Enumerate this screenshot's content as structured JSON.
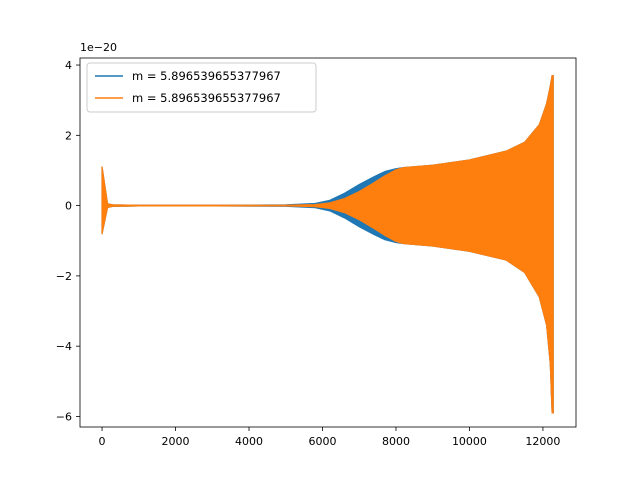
{
  "chart_data": {
    "type": "line",
    "title": "",
    "xlabel": "",
    "ylabel": "",
    "offset_text": "1e−20",
    "xlim": [
      -600,
      12900
    ],
    "ylim": [
      -6.3,
      4.2
    ],
    "x_ticks": [
      0,
      2000,
      4000,
      6000,
      8000,
      10000,
      12000
    ],
    "x_tick_labels": [
      "0",
      "2000",
      "4000",
      "6000",
      "8000",
      "10000",
      "12000"
    ],
    "y_ticks": [
      -6,
      -4,
      -2,
      0,
      2,
      4
    ],
    "y_tick_labels": [
      "−6",
      "−4",
      "−2",
      "0",
      "2",
      "4"
    ],
    "grid": false,
    "legend_position": "top-left",
    "series": [
      {
        "name": "m = 5.896539655377967",
        "color": "#1f77b4",
        "envelope": {
          "x": [
            0,
            150,
            300,
            1000,
            3000,
            5000,
            5800,
            6200,
            6600,
            7000,
            7400,
            7700,
            8000,
            8200,
            9000,
            10000,
            11000,
            11500,
            11900,
            12100,
            12200,
            12250,
            12280
          ],
          "upper": [
            1.1,
            0.05,
            0.02,
            0.01,
            0.01,
            0.02,
            0.06,
            0.15,
            0.35,
            0.6,
            0.82,
            0.97,
            1.05,
            1.08,
            1.15,
            1.3,
            1.55,
            1.8,
            2.3,
            2.9,
            3.4,
            3.7,
            3.7
          ],
          "lower": [
            -0.8,
            -0.05,
            -0.02,
            -0.01,
            -0.01,
            -0.02,
            -0.06,
            -0.15,
            -0.35,
            -0.6,
            -0.82,
            -0.97,
            -1.05,
            -1.08,
            -1.15,
            -1.3,
            -1.55,
            -1.9,
            -2.6,
            -3.4,
            -4.5,
            -5.9,
            -5.9
          ]
        }
      },
      {
        "name": "m = 5.896539655377967",
        "color": "#ff7f0e",
        "envelope": {
          "x": [
            0,
            150,
            300,
            1000,
            3000,
            5000,
            5800,
            6200,
            6600,
            7000,
            7400,
            7700,
            8000,
            8200,
            9000,
            10000,
            11000,
            11500,
            11900,
            12100,
            12200,
            12250,
            12280
          ],
          "upper": [
            1.1,
            0.05,
            0.02,
            0.01,
            0.01,
            0.01,
            0.03,
            0.08,
            0.2,
            0.4,
            0.65,
            0.85,
            1.02,
            1.08,
            1.15,
            1.3,
            1.55,
            1.8,
            2.3,
            2.9,
            3.4,
            3.7,
            3.7
          ],
          "lower": [
            -0.8,
            -0.05,
            -0.02,
            -0.01,
            -0.01,
            -0.01,
            -0.03,
            -0.08,
            -0.2,
            -0.4,
            -0.65,
            -0.85,
            -1.02,
            -1.08,
            -1.15,
            -1.3,
            -1.55,
            -1.9,
            -2.6,
            -3.4,
            -4.5,
            -5.9,
            -5.9
          ]
        }
      }
    ]
  }
}
